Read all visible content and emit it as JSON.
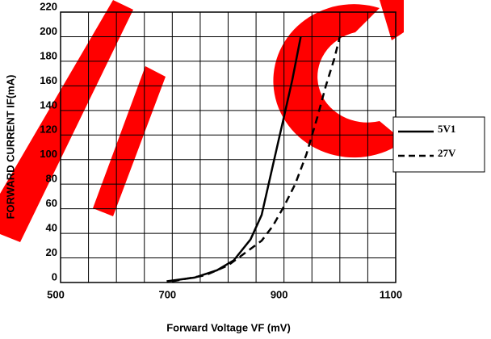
{
  "chart_data": {
    "type": "line",
    "x_label": "Forward Voltage  VF (mV)",
    "y_label": "FORWARD CURRENT  IF(mA)",
    "xlim": [
      500,
      1100
    ],
    "xticks": [
      500,
      700,
      900,
      1100
    ],
    "xgrid": [
      500,
      550,
      600,
      650,
      700,
      750,
      800,
      850,
      900,
      950,
      1000,
      1050,
      1100
    ],
    "ylim": [
      0,
      220
    ],
    "yticks": [
      0,
      20,
      40,
      60,
      80,
      100,
      120,
      140,
      160,
      180,
      200,
      220
    ],
    "grid": true,
    "series": [
      {
        "name": "5V1",
        "color": "#000000",
        "style": "solid",
        "x": [
          690,
          740,
          780,
          810,
          840,
          860,
          880,
          900,
          915,
          930
        ],
        "values": [
          1,
          4,
          10,
          18,
          35,
          55,
          95,
          135,
          165,
          200
        ]
      },
      {
        "name": "27V",
        "color": "#000000",
        "style": "dashed",
        "x": [
          700,
          760,
          800,
          830,
          860,
          880,
          900,
          920,
          940,
          960,
          975,
          990,
          1000
        ],
        "values": [
          1,
          6,
          14,
          24,
          34,
          46,
          62,
          80,
          104,
          135,
          160,
          182,
          200
        ]
      }
    ]
  }
}
